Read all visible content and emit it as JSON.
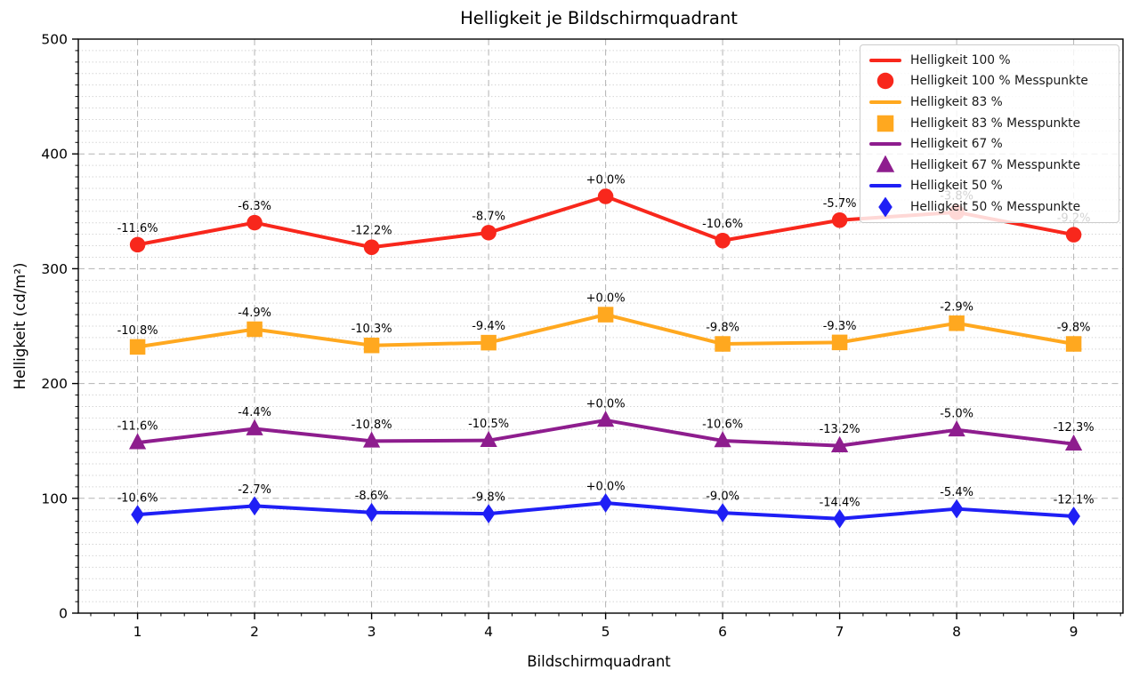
{
  "chart_data": {
    "type": "line",
    "title": "Helligkeit je Bildschirmquadrant",
    "xlabel": "Bildschirmquadrant",
    "ylabel": "Helligkeit (cd/m²)",
    "x": [
      1,
      2,
      3,
      4,
      5,
      6,
      7,
      8,
      9
    ],
    "x_tick_labels": [
      "1",
      "2",
      "3",
      "4",
      "5",
      "6",
      "7",
      "8",
      "9"
    ],
    "ylim": [
      0,
      500
    ],
    "y_ticks": [
      0,
      100,
      200,
      300,
      400,
      500
    ],
    "y_tick_labels": [
      "0",
      "100",
      "200",
      "300",
      "400",
      "500"
    ],
    "grid": "major dashed, minor dotted horizontal",
    "legend_position": "upper right",
    "series": [
      {
        "name": "Helligkeit 100 %",
        "points_name": "Helligkeit 100 % Messpunkte",
        "color": "#f8271c",
        "marker": "circle",
        "values": [
          320.9,
          340.1,
          318.7,
          331.4,
          363.0,
          324.5,
          342.3,
          349.2,
          329.6
        ],
        "point_labels": [
          "-11.6%",
          "-6.3%",
          "-12.2%",
          "-8.7%",
          "+0.0%",
          "-10.6%",
          "-5.7%",
          "-3.8%",
          "-9.2%"
        ]
      },
      {
        "name": "Helligkeit 83 %",
        "points_name": "Helligkeit 83 % Messpunkte",
        "color": "#ffa81f",
        "marker": "square",
        "values": [
          231.9,
          247.3,
          233.2,
          235.6,
          260.0,
          234.5,
          235.8,
          252.5,
          234.5
        ],
        "point_labels": [
          "-10.8%",
          "-4.9%",
          "-10.3%",
          "-9.4%",
          "+0.0%",
          "-9.8%",
          "-9.3%",
          "-2.9%",
          "-9.8%"
        ]
      },
      {
        "name": "Helligkeit 67 %",
        "points_name": "Helligkeit 67 % Messpunkte",
        "color": "#8e1d8e",
        "marker": "triangle",
        "values": [
          148.5,
          160.6,
          149.9,
          150.4,
          168.0,
          150.2,
          145.8,
          159.6,
          147.3
        ],
        "point_labels": [
          "-11.6%",
          "-4.4%",
          "-10.8%",
          "-10.5%",
          "+0.0%",
          "-10.6%",
          "-13.2%",
          "-5.0%",
          "-12.3%"
        ]
      },
      {
        "name": "Helligkeit 50 %",
        "points_name": "Helligkeit 50 % Messpunkte",
        "color": "#1f1ff5",
        "marker": "diamond",
        "values": [
          85.8,
          93.4,
          87.7,
          86.6,
          96.0,
          87.4,
          82.2,
          90.8,
          84.4
        ],
        "point_labels": [
          "-10.6%",
          "-2.7%",
          "-8.6%",
          "-9.8%",
          "+0.0%",
          "-9.0%",
          "-14.4%",
          "-5.4%",
          "-12.1%"
        ]
      }
    ]
  }
}
